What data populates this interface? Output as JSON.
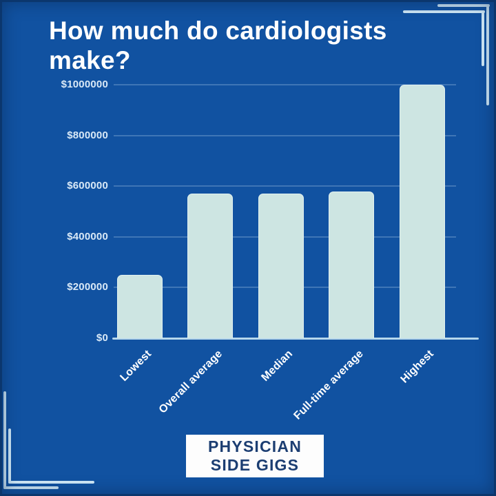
{
  "title": "How much do cardiologists make?",
  "chart_data": {
    "type": "bar",
    "title": "How much do cardiologists make?",
    "categories": [
      "Lowest",
      "Overall average",
      "Median",
      "Full-time average",
      "Highest"
    ],
    "values": [
      250000,
      570000,
      570000,
      580000,
      1000000
    ],
    "xlabel": "",
    "ylabel": "",
    "ylim": [
      0,
      1000000
    ],
    "yticks": [
      0,
      200000,
      400000,
      600000,
      800000,
      1000000
    ],
    "ytick_labels": [
      "$0",
      "$200000",
      "$400000",
      "$600000",
      "$800000",
      "$1000000"
    ],
    "grid": true,
    "legend": "none",
    "bar_color": "#cde5e2",
    "background_color": "#1152a1"
  },
  "footer": {
    "badge_line1": "PHYSICIAN",
    "badge_line2": "SIDE GIGS"
  },
  "colors": {
    "background": "#1152a1",
    "bar": "#cde5e2",
    "title_text": "#ffffff",
    "axis_label_text": "#d9e9f7",
    "x_label_text": "#ffffff",
    "axis_line": "#b7d8ec",
    "badge_background": "#fdfdfd",
    "badge_text": "#1c3e72",
    "corner_bracket": "#d2eaf8"
  }
}
